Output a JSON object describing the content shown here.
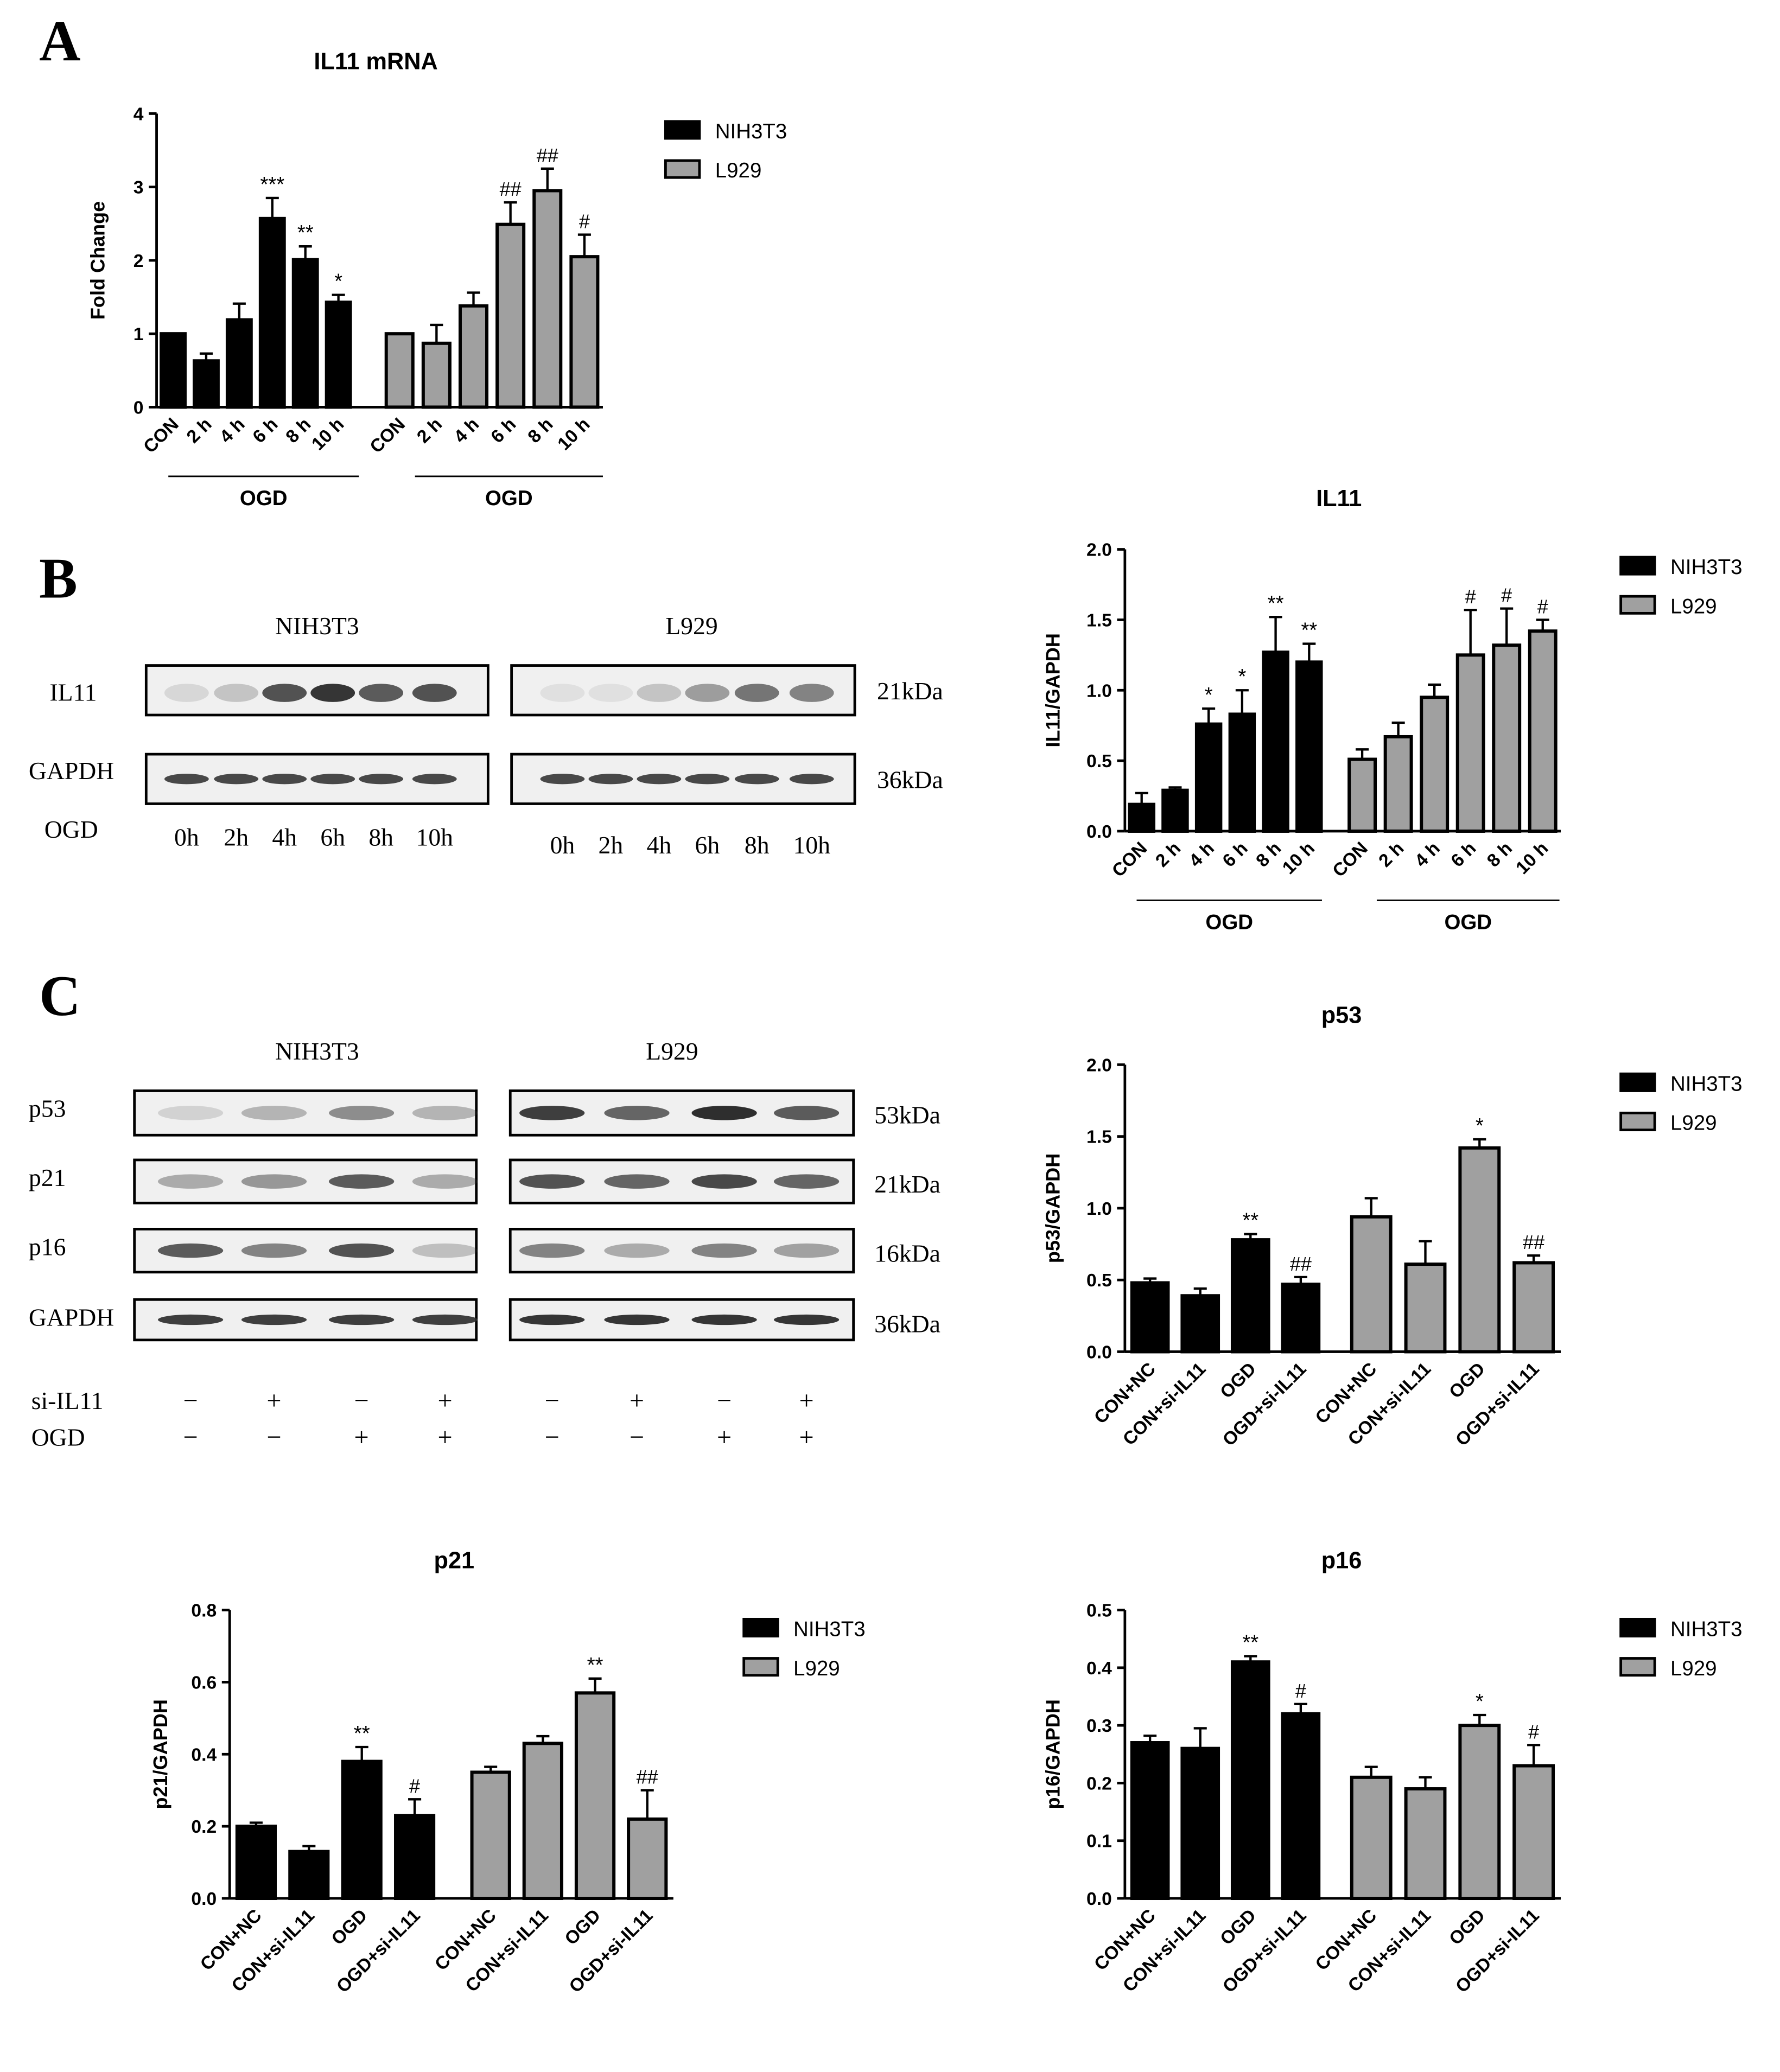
{
  "panel_labels": [
    "A",
    "B",
    "C"
  ],
  "series_names": [
    "NIH3T3",
    "L929"
  ],
  "colors": {
    "NIH3T3": "#000000",
    "L929": "#a0a0a0",
    "axis": "#000000",
    "band_bg": "#f0f0f0",
    "band": "#2a2a2a"
  },
  "blots": {
    "B": {
      "cells": [
        "NIH3T3",
        "L929"
      ],
      "rows": [
        "IL11",
        "GAPDH"
      ],
      "mw": [
        "21kDa",
        "36kDa"
      ],
      "cond_label": "OGD",
      "lanes": [
        "0h",
        "2h",
        "4h",
        "6h",
        "8h",
        "10h"
      ]
    },
    "C": {
      "cells": [
        "NIH3T3",
        "L929"
      ],
      "rows": [
        "p53",
        "p21",
        "p16",
        "GAPDH"
      ],
      "mw": [
        "53kDa",
        "21kDa",
        "16kDa",
        "36kDa"
      ],
      "treat_rows": [
        {
          "label": "si-IL11",
          "signs": [
            "−",
            "+",
            "−",
            "+"
          ]
        },
        {
          "label": "OGD",
          "signs": [
            "−",
            "−",
            "+",
            "+"
          ]
        }
      ]
    }
  },
  "chart_data": [
    {
      "id": "A",
      "type": "bar",
      "title": "IL11 mRNA",
      "ylabel": "Fold Change",
      "ylim": [
        0,
        4
      ],
      "yticks": [
        "0",
        "1",
        "2",
        "3",
        "4"
      ],
      "categories": [
        "CON",
        "2 h",
        "4 h",
        "6 h",
        "8 h",
        "10 h"
      ],
      "group_label": "OGD",
      "series": [
        {
          "name": "NIH3T3",
          "values": [
            1.0,
            0.63,
            1.19,
            2.57,
            2.01,
            1.43
          ],
          "errors": [
            0,
            0.1,
            0.22,
            0.28,
            0.18,
            0.1
          ],
          "marks": [
            "",
            "",
            "",
            "***",
            "**",
            "*"
          ]
        },
        {
          "name": "L929",
          "values": [
            1.0,
            0.87,
            1.38,
            2.49,
            2.95,
            2.05
          ],
          "errors": [
            0,
            0.25,
            0.18,
            0.3,
            0.3,
            0.3
          ],
          "marks": [
            "",
            "",
            "",
            "##",
            "##",
            "#"
          ]
        }
      ]
    },
    {
      "id": "B",
      "type": "bar",
      "title": "IL11",
      "ylabel": "IL11/GAPDH",
      "ylim": [
        0,
        2
      ],
      "yticks": [
        "0.0",
        "0.5",
        "1.0",
        "1.5",
        "2.0"
      ],
      "categories": [
        "CON",
        "2 h",
        "4 h",
        "6 h",
        "8 h",
        "10 h"
      ],
      "group_label": "OGD",
      "series": [
        {
          "name": "NIH3T3",
          "values": [
            0.19,
            0.29,
            0.76,
            0.83,
            1.27,
            1.2
          ],
          "errors": [
            0.08,
            0.02,
            0.11,
            0.17,
            0.25,
            0.13
          ],
          "marks": [
            "",
            "",
            "*",
            "*",
            "**",
            "**"
          ]
        },
        {
          "name": "L929",
          "values": [
            0.51,
            0.67,
            0.95,
            1.25,
            1.32,
            1.42
          ],
          "errors": [
            0.07,
            0.1,
            0.09,
            0.32,
            0.26,
            0.08
          ],
          "marks": [
            "",
            "",
            "",
            "#",
            "#",
            "#"
          ]
        }
      ]
    },
    {
      "id": "p53",
      "type": "bar",
      "title": "p53",
      "ylabel": "p53/GAPDH",
      "ylim": [
        0,
        2
      ],
      "yticks": [
        "0.0",
        "0.5",
        "1.0",
        "1.5",
        "2.0"
      ],
      "categories": [
        "CON+NC",
        "CON+si-IL11",
        "OGD",
        "OGD+si-IL11"
      ],
      "series": [
        {
          "name": "NIH3T3",
          "values": [
            0.48,
            0.39,
            0.78,
            0.47
          ],
          "errors": [
            0.03,
            0.05,
            0.04,
            0.05
          ],
          "marks": [
            "",
            "",
            "**",
            "##"
          ]
        },
        {
          "name": "L929",
          "values": [
            0.94,
            0.61,
            1.42,
            0.62
          ],
          "errors": [
            0.13,
            0.16,
            0.06,
            0.05
          ],
          "marks": [
            "",
            "",
            "*",
            "##"
          ]
        }
      ]
    },
    {
      "id": "p21",
      "type": "bar",
      "title": "p21",
      "ylabel": "p21/GAPDH",
      "ylim": [
        0,
        0.8
      ],
      "yticks": [
        "0.0",
        "0.2",
        "0.4",
        "0.6",
        "0.8"
      ],
      "categories": [
        "CON+NC",
        "CON+si-IL11",
        "OGD",
        "OGD+si-IL11"
      ],
      "series": [
        {
          "name": "NIH3T3",
          "values": [
            0.2,
            0.13,
            0.38,
            0.23
          ],
          "errors": [
            0.01,
            0.015,
            0.04,
            0.045
          ],
          "marks": [
            "",
            "",
            "**",
            "#"
          ]
        },
        {
          "name": "L929",
          "values": [
            0.35,
            0.43,
            0.57,
            0.22
          ],
          "errors": [
            0.015,
            0.02,
            0.04,
            0.08
          ],
          "marks": [
            "",
            "",
            "**",
            "##"
          ]
        }
      ]
    },
    {
      "id": "p16",
      "type": "bar",
      "title": "p16",
      "ylabel": "p16/GAPDH",
      "ylim": [
        0,
        0.5
      ],
      "yticks": [
        "0.0",
        "0.1",
        "0.2",
        "0.3",
        "0.4",
        "0.5"
      ],
      "categories": [
        "CON+NC",
        "CON+si-IL11",
        "OGD",
        "OGD+si-IL11"
      ],
      "series": [
        {
          "name": "NIH3T3",
          "values": [
            0.27,
            0.26,
            0.41,
            0.32
          ],
          "errors": [
            0.012,
            0.035,
            0.01,
            0.017
          ],
          "marks": [
            "",
            "",
            "**",
            "#"
          ]
        },
        {
          "name": "L929",
          "values": [
            0.21,
            0.19,
            0.3,
            0.23
          ],
          "errors": [
            0.018,
            0.02,
            0.018,
            0.036
          ],
          "marks": [
            "",
            "",
            "*",
            "#"
          ]
        }
      ]
    }
  ]
}
